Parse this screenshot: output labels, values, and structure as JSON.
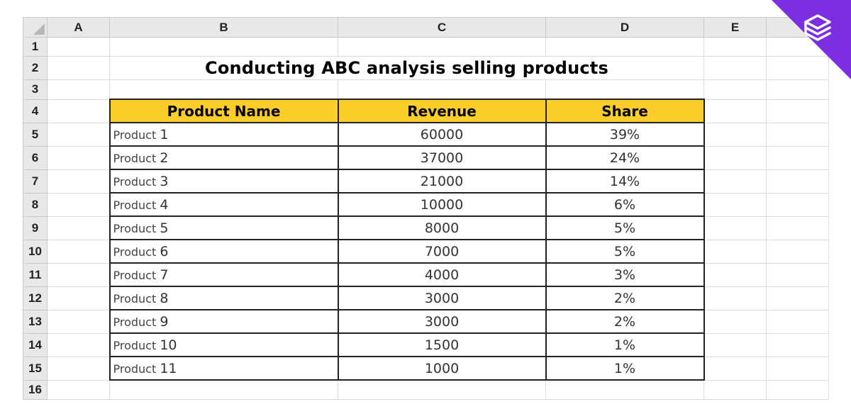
{
  "columns": [
    "A",
    "B",
    "C",
    "D",
    "E"
  ],
  "rows": [
    "1",
    "2",
    "3",
    "4",
    "5",
    "6",
    "7",
    "8",
    "9",
    "10",
    "11",
    "12",
    "13",
    "14",
    "15",
    "16"
  ],
  "title": "Conducting ABC analysis selling products",
  "table": {
    "headers": [
      "Product Name",
      "Revenue",
      "Share"
    ],
    "product_prefix": "Product",
    "rows": [
      {
        "num": "1",
        "revenue": "60000",
        "share": "39%"
      },
      {
        "num": "2",
        "revenue": "37000",
        "share": "24%"
      },
      {
        "num": "3",
        "revenue": "21000",
        "share": "14%"
      },
      {
        "num": "4",
        "revenue": "10000",
        "share": "6%"
      },
      {
        "num": "5",
        "revenue": "8000",
        "share": "5%"
      },
      {
        "num": "6",
        "revenue": "7000",
        "share": "5%"
      },
      {
        "num": "7",
        "revenue": "4000",
        "share": "3%"
      },
      {
        "num": "8",
        "revenue": "3000",
        "share": "2%"
      },
      {
        "num": "9",
        "revenue": "3000",
        "share": "2%"
      },
      {
        "num": "10",
        "revenue": "1500",
        "share": "1%"
      },
      {
        "num": "11",
        "revenue": "1000",
        "share": "1%"
      }
    ]
  },
  "colors": {
    "header_fill": "#fdcd2c",
    "logo": "#7b2fe0"
  },
  "icons": {
    "logo": "layered-stack-icon"
  }
}
